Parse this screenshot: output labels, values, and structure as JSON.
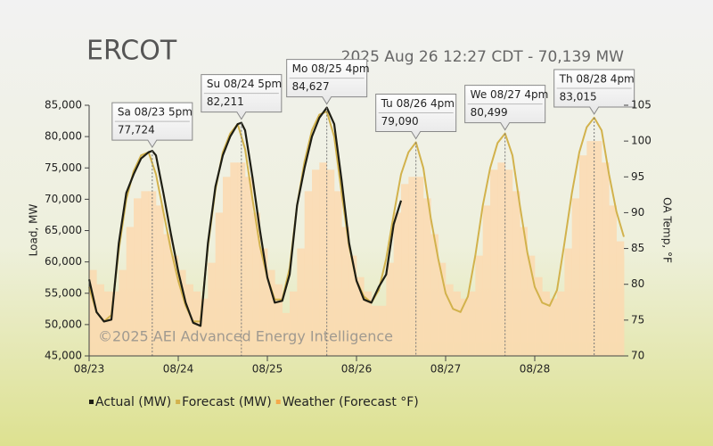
{
  "chart_data": {
    "type": "line",
    "title": "ERCOT",
    "subtitle": "2025 Aug 26 12:27 CDT - 70,139 MW",
    "watermark": "©2025 AEI Advanced Energy Intelligence",
    "y_label": "Load, MW",
    "y2_label": "OA Temp, °F",
    "xlim": [
      0,
      144
    ],
    "xticks": [
      {
        "value": 0,
        "label": "08/23"
      },
      {
        "value": 24,
        "label": "08/24"
      },
      {
        "value": 48,
        "label": "08/25"
      },
      {
        "value": 72,
        "label": "08/26"
      },
      {
        "value": 96,
        "label": "08/27"
      },
      {
        "value": 120,
        "label": "08/28"
      }
    ],
    "ylim": [
      45000,
      85000
    ],
    "yticks": [
      {
        "value": 45000,
        "label": "45,000"
      },
      {
        "value": 50000,
        "label": "50,000"
      },
      {
        "value": 55000,
        "label": "55,000"
      },
      {
        "value": 60000,
        "label": "60,000"
      },
      {
        "value": 65000,
        "label": "65,000"
      },
      {
        "value": 70000,
        "label": "70,000"
      },
      {
        "value": 75000,
        "label": "75,000"
      },
      {
        "value": 80000,
        "label": "80,000"
      },
      {
        "value": 85000,
        "label": "85,000"
      }
    ],
    "y2lim": [
      70,
      105
    ],
    "y2ticks": [
      70,
      75,
      80,
      85,
      90,
      95,
      100,
      105
    ],
    "grid": false,
    "series": [
      {
        "name": "Actual (MW)",
        "color": "#1e1e14",
        "x": [
          0,
          2,
          4,
          6,
          8,
          10,
          12,
          14,
          16,
          17,
          18,
          20,
          22,
          24,
          26,
          28,
          30,
          32,
          34,
          36,
          38,
          40,
          41,
          42,
          44,
          46,
          48,
          50,
          52,
          54,
          56,
          58,
          60,
          62,
          64,
          66,
          68,
          70,
          72,
          74,
          76,
          78,
          80,
          82,
          84
        ],
        "values": [
          57200,
          52000,
          50500,
          50800,
          63000,
          71000,
          74000,
          76500,
          77500,
          77724,
          77000,
          71000,
          64500,
          58500,
          53500,
          50300,
          49800,
          63000,
          72000,
          77000,
          80000,
          82000,
          82211,
          81000,
          73500,
          65000,
          57500,
          53500,
          53800,
          58000,
          69000,
          75000,
          80000,
          83000,
          84627,
          82000,
          73000,
          63000,
          57000,
          54000,
          53500,
          56000,
          58000,
          66000,
          69800
        ]
      },
      {
        "name": "Forecast (MW)",
        "color": "#d2b24c",
        "x": [
          0,
          2,
          4,
          6,
          8,
          10,
          12,
          14,
          16,
          18,
          20,
          22,
          24,
          26,
          28,
          30,
          32,
          34,
          36,
          38,
          40,
          42,
          44,
          46,
          48,
          50,
          52,
          54,
          56,
          58,
          60,
          62,
          64,
          66,
          68,
          70,
          72,
          74,
          76,
          78,
          80,
          82,
          84,
          86,
          88,
          90,
          92,
          94,
          96,
          98,
          100,
          102,
          104,
          106,
          108,
          110,
          112,
          114,
          116,
          118,
          120,
          122,
          124,
          126,
          128,
          130,
          132,
          134,
          136,
          138,
          140,
          142,
          144
        ],
        "values": [
          56000,
          52000,
          50500,
          51500,
          62000,
          70000,
          74500,
          77000,
          77500,
          74000,
          68000,
          62000,
          57000,
          53000,
          50500,
          50500,
          62500,
          71500,
          77500,
          80500,
          82000,
          78000,
          70000,
          62500,
          57500,
          54000,
          54000,
          59000,
          69000,
          76000,
          81000,
          83500,
          84000,
          80000,
          71000,
          62500,
          57000,
          54500,
          53500,
          55500,
          60500,
          67500,
          74000,
          77500,
          79090,
          75000,
          67000,
          60500,
          55000,
          52500,
          52000,
          54500,
          61000,
          69000,
          75000,
          79000,
          80499,
          77000,
          69000,
          61500,
          56000,
          53500,
          53000,
          55500,
          63000,
          71000,
          77500,
          81500,
          83015,
          81000,
          74000,
          68000,
          64000
        ]
      },
      {
        "name": "Weather (Forecast °F)",
        "color": "#fcd9b0",
        "axis": "y2",
        "x": [
          0,
          2,
          4,
          6,
          8,
          10,
          12,
          14,
          16,
          18,
          20,
          22,
          24,
          26,
          28,
          30,
          32,
          34,
          36,
          38,
          40,
          42,
          44,
          46,
          48,
          50,
          52,
          54,
          56,
          58,
          60,
          62,
          64,
          66,
          68,
          70,
          72,
          74,
          76,
          78,
          80,
          82,
          84,
          86,
          88,
          90,
          92,
          94,
          96,
          98,
          100,
          102,
          104,
          106,
          108,
          110,
          112,
          114,
          116,
          118,
          120,
          122,
          124,
          126,
          128,
          130,
          132,
          134,
          136,
          138,
          140,
          142,
          144
        ],
        "values": [
          82,
          80,
          79,
          79,
          82,
          88,
          92,
          93,
          93,
          91,
          87,
          84,
          82,
          80,
          79,
          78,
          83,
          90,
          95,
          97,
          97,
          95,
          90,
          85,
          82,
          80,
          76,
          79,
          85,
          93,
          96,
          97,
          96,
          93,
          88,
          84,
          81,
          79,
          77,
          77,
          83,
          90,
          94,
          95,
          95,
          92,
          87,
          83,
          80,
          79,
          78,
          79,
          84,
          91,
          96,
          97,
          96,
          93,
          88,
          84,
          81,
          79,
          78,
          79,
          85,
          92,
          98,
          100,
          100,
          97,
          91,
          86,
          84
        ]
      }
    ],
    "annotations": [
      {
        "x": 17,
        "y": 77724,
        "text": [
          "Sa 08/23 5pm",
          "77,724"
        ]
      },
      {
        "x": 41,
        "y": 82211,
        "text": [
          "Su 08/24 5pm",
          "82,211"
        ]
      },
      {
        "x": 64,
        "y": 84627,
        "text": [
          "Mo 08/25 4pm",
          "84,627"
        ]
      },
      {
        "x": 88,
        "y": 79090,
        "text": [
          "Tu 08/26 4pm",
          "79,090"
        ],
        "color": "#cc0000"
      },
      {
        "x": 112,
        "y": 80499,
        "text": [
          "We 08/27 4pm",
          "80,499"
        ]
      },
      {
        "x": 136,
        "y": 83015,
        "text": [
          "Th 08/28 4pm",
          "83,015"
        ]
      }
    ]
  }
}
